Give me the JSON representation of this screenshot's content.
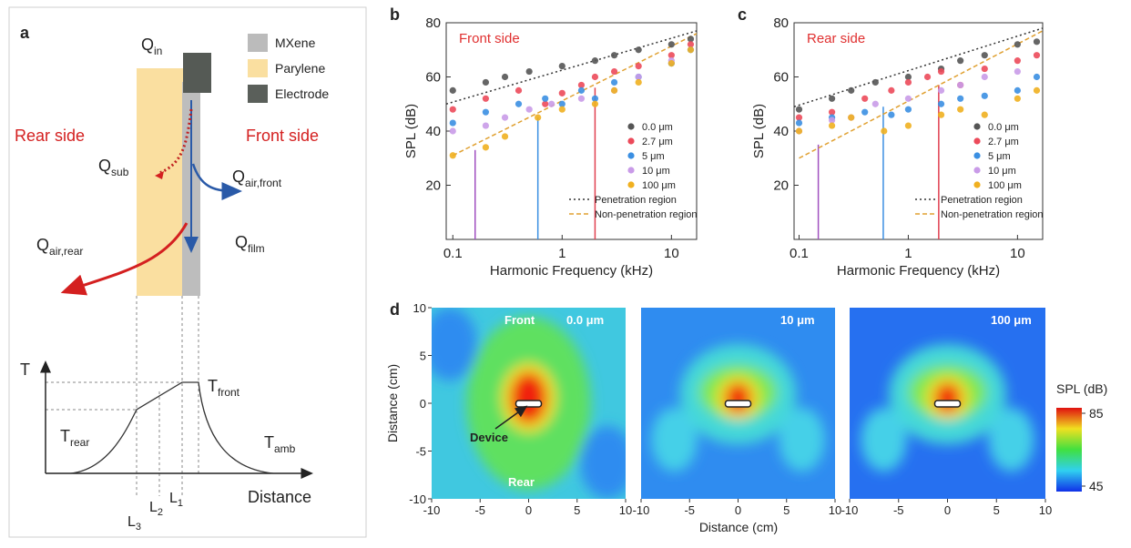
{
  "panel_a": {
    "label": "a",
    "legend": [
      "MXene",
      "Parylene",
      "Electrode"
    ],
    "rear_side": "Rear side",
    "front_side": "Front side",
    "heat_flows": [
      {
        "main": "Q",
        "sub": "in"
      },
      {
        "main": "Q",
        "sub": "sub"
      },
      {
        "main": "Q",
        "sub": "air,front"
      },
      {
        "main": "Q",
        "sub": "air,rear"
      },
      {
        "main": "Q",
        "sub": "film"
      }
    ],
    "temperature_axis": "T",
    "distance_axis": "Distance",
    "temperatures": [
      {
        "main": "T",
        "sub": "front"
      },
      {
        "main": "T",
        "sub": "rear"
      },
      {
        "main": "T",
        "sub": "amb"
      }
    ],
    "positions": [
      {
        "main": "L",
        "sub": "1"
      },
      {
        "main": "L",
        "sub": "2"
      },
      {
        "main": "L",
        "sub": "3"
      }
    ]
  },
  "chart_data": [
    {
      "type": "scatter",
      "panel": "b",
      "title": "Front side",
      "title_color": "#e03030",
      "xlabel": "Harmonic Frequency (kHz)",
      "ylabel": "SPL (dB)",
      "xscale": "log",
      "xlim": [
        0.087,
        17
      ],
      "ylim": [
        0,
        80
      ],
      "xticks": [
        0.1,
        1,
        10
      ],
      "yticks": [
        20,
        40,
        60,
        80
      ],
      "legend": "lower right",
      "series": [
        {
          "name": "0.0 μm",
          "color": "#555555",
          "x": [
            0.1,
            0.2,
            0.3,
            0.5,
            1,
            2,
            3,
            5,
            10,
            15
          ],
          "values": [
            55,
            58,
            60,
            62,
            64,
            66,
            68,
            70,
            72,
            74
          ]
        },
        {
          "name": "2.7 μm",
          "color": "#ec4a5a",
          "x": [
            0.1,
            0.2,
            0.4,
            0.7,
            1,
            1.5,
            2,
            3,
            5,
            10,
            15
          ],
          "values": [
            48,
            52,
            55,
            50,
            54,
            57,
            60,
            62,
            64,
            68,
            72
          ]
        },
        {
          "name": "5 μm",
          "color": "#3b8fe2",
          "x": [
            0.1,
            0.2,
            0.4,
            0.7,
            1,
            1.5,
            2,
            3,
            5,
            10,
            15
          ],
          "values": [
            43,
            47,
            50,
            52,
            50,
            55,
            52,
            58,
            60,
            65,
            70
          ]
        },
        {
          "name": "10 μm",
          "color": "#c99be8",
          "x": [
            0.1,
            0.2,
            0.3,
            0.5,
            0.8,
            1.5,
            3,
            5,
            10
          ],
          "values": [
            40,
            42,
            45,
            48,
            50,
            52,
            55,
            60,
            66
          ]
        },
        {
          "name": "100 μm",
          "color": "#f0b020",
          "x": [
            0.1,
            0.2,
            0.3,
            0.6,
            1,
            2,
            3,
            5,
            10,
            15
          ],
          "values": [
            31,
            34,
            38,
            45,
            48,
            50,
            55,
            58,
            65,
            70
          ]
        }
      ],
      "fits": [
        {
          "name": "Penetration region",
          "color": "#333333",
          "dash": "dotted",
          "x": [
            0.087,
            17
          ],
          "values": [
            50,
            77
          ]
        },
        {
          "name": "Non-penetration region",
          "color": "#e0a030",
          "dash": "dashed",
          "x": [
            0.1,
            17
          ],
          "values": [
            31,
            76
          ]
        }
      ],
      "vlines": [
        {
          "x": 0.16,
          "top": 33,
          "color": "#a050c0"
        },
        {
          "x": 0.6,
          "top": 45,
          "color": "#3b8fe2"
        },
        {
          "x": 2,
          "top": 56,
          "color": "#e04050"
        }
      ]
    },
    {
      "type": "scatter",
      "panel": "c",
      "title": "Rear side",
      "title_color": "#e03030",
      "xlabel": "Harmonic Frequency (kHz)",
      "ylabel": "SPL (dB)",
      "xscale": "log",
      "xlim": [
        0.09,
        17
      ],
      "ylim": [
        0,
        80
      ],
      "xticks": [
        0.1,
        1,
        10
      ],
      "yticks": [
        20,
        40,
        60,
        80
      ],
      "legend": "lower right",
      "series": [
        {
          "name": "0.0 μm",
          "color": "#555555",
          "x": [
            0.1,
            0.2,
            0.3,
            0.5,
            1,
            2,
            3,
            5,
            10,
            15
          ],
          "values": [
            48,
            52,
            55,
            58,
            60,
            63,
            66,
            68,
            72,
            73
          ]
        },
        {
          "name": "2.7 μm",
          "color": "#ec4a5a",
          "x": [
            0.1,
            0.2,
            0.4,
            0.7,
            1,
            1.5,
            2,
            3,
            5,
            10,
            15
          ],
          "values": [
            45,
            47,
            52,
            55,
            58,
            60,
            62,
            57,
            63,
            66,
            68
          ]
        },
        {
          "name": "5 μm",
          "color": "#3b8fe2",
          "x": [
            0.1,
            0.2,
            0.4,
            0.7,
            1,
            2,
            3,
            5,
            10,
            15
          ],
          "values": [
            43,
            45,
            47,
            46,
            48,
            50,
            52,
            53,
            55,
            60
          ]
        },
        {
          "name": "10 μm",
          "color": "#c99be8",
          "x": [
            0.1,
            0.2,
            0.3,
            0.5,
            1,
            2,
            3,
            5,
            10
          ],
          "values": [
            40,
            44,
            45,
            50,
            52,
            55,
            57,
            60,
            62
          ]
        },
        {
          "name": "100 μm",
          "color": "#f0b020",
          "x": [
            0.1,
            0.2,
            0.3,
            0.6,
            1,
            2,
            3,
            5,
            10,
            15
          ],
          "values": [
            40,
            42,
            45,
            40,
            42,
            46,
            48,
            46,
            52,
            55
          ]
        }
      ],
      "fits": [
        {
          "name": "Penetration region",
          "color": "#333333",
          "dash": "dotted",
          "x": [
            0.09,
            17
          ],
          "values": [
            49,
            78
          ]
        },
        {
          "name": "Non-penetration region",
          "color": "#e0a030",
          "dash": "dashed",
          "x": [
            0.1,
            17
          ],
          "values": [
            30,
            77
          ]
        }
      ],
      "vlines": [
        {
          "x": 0.15,
          "top": 35,
          "color": "#a050c0"
        },
        {
          "x": 0.59,
          "top": 49,
          "color": "#3b8fe2"
        },
        {
          "x": 1.9,
          "top": 57,
          "color": "#e04050"
        }
      ]
    },
    {
      "type": "heatmap",
      "panel": "d",
      "xlabel": "Distance (cm)",
      "ylabel": "Distance (cm)",
      "xlim": [
        -10,
        10
      ],
      "ylim": [
        -10,
        10
      ],
      "xticks": [
        -10,
        -5,
        0,
        5,
        10
      ],
      "yticks": [
        -10,
        -5,
        0,
        5,
        10
      ],
      "maps": [
        {
          "thickness": "0.0 μm",
          "annotations": [
            "Front",
            "Device",
            "Rear"
          ]
        },
        {
          "thickness": "10 μm"
        },
        {
          "thickness": "100 μm"
        }
      ],
      "colorbar": {
        "label": "SPL (dB)",
        "lim": [
          45,
          85
        ],
        "ticks": [
          45,
          85
        ]
      }
    }
  ]
}
